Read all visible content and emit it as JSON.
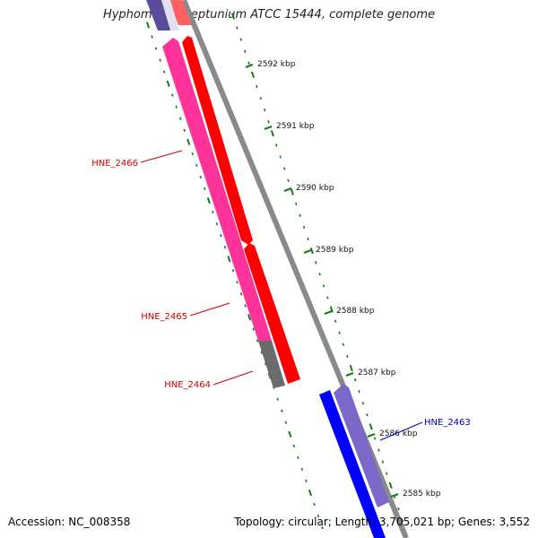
{
  "title": "Hyphomonas neptunium ATCC 15444, complete genome",
  "footer": {
    "accession": "Accession: NC_008358",
    "summary": "Topology: circular; Length: 3,705,021 bp; Genes: 3,552"
  },
  "scale": {
    "labels": [
      "2592 kbp",
      "2591 kbp",
      "2590 kbp",
      "2589 kbp",
      "2588 kbp",
      "2587 kbp",
      "2586 kbp",
      "2585 kbp"
    ]
  },
  "genes": [
    {
      "name": "HNE_2466",
      "color": "#cc0000"
    },
    {
      "name": "HNE_2465",
      "color": "#cc0000"
    },
    {
      "name": "HNE_2464",
      "color": "#cc0000"
    },
    {
      "name": "HNE_2463",
      "color": "#0000bb"
    }
  ],
  "colors": {
    "forward_cds": "#ff0000",
    "reverse_cds_magenta": "#ff3399",
    "reverse_cds_gray": "#6b6b6b",
    "blue_cds": "#0000ff",
    "lavender_cds": "#7b68c8",
    "backbone": "#8a8a8a",
    "ticks": "#1a7a1a"
  }
}
